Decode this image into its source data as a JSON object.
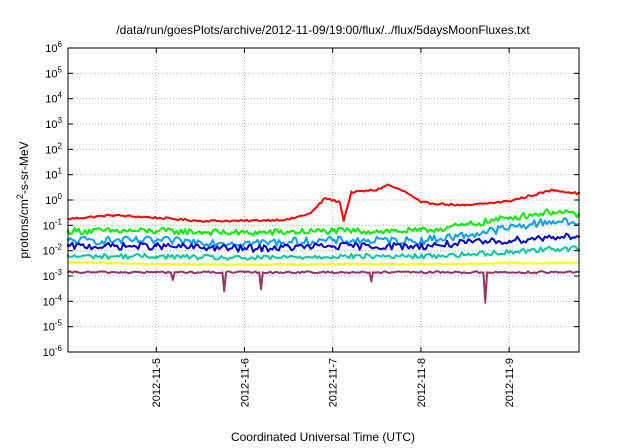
{
  "chart_data": {
    "type": "line",
    "title": "/data/run/goesPlots/archive/2012-11-09/19:00/flux/../flux/5daysMoonFluxes.txt",
    "xlabel": "Coordinated Universal Time (UTC)",
    "ylabel": {
      "prefix": "protons/cm",
      "sup": "2",
      "suffix": "-s-sr-MeV"
    },
    "y_scale": "log",
    "ylim": [
      1e-06,
      1000000.0
    ],
    "xlim": [
      "2012-11-04T00:00Z",
      "2012-11-09T19:00Z"
    ],
    "grid": true,
    "y_ticks": [
      {
        "base": "10",
        "exp": "-6"
      },
      {
        "base": "10",
        "exp": "-5"
      },
      {
        "base": "10",
        "exp": "-4"
      },
      {
        "base": "10",
        "exp": "-3"
      },
      {
        "base": "10",
        "exp": "-2"
      },
      {
        "base": "10",
        "exp": "-1"
      },
      {
        "base": "10",
        "exp": "0"
      },
      {
        "base": "10",
        "exp": "1"
      },
      {
        "base": "10",
        "exp": "2"
      },
      {
        "base": "10",
        "exp": "3"
      },
      {
        "base": "10",
        "exp": "4"
      },
      {
        "base": "10",
        "exp": "5"
      },
      {
        "base": "10",
        "exp": "6"
      }
    ],
    "x_ticks": [
      "2012-11-5",
      "2012-11-6",
      "2012-11-7",
      "2012-11-8",
      "2012-11-9"
    ],
    "x_tick_dates": [
      "2012-11-05T00:00Z",
      "2012-11-06T00:00Z",
      "2012-11-07T00:00Z",
      "2012-11-08T00:00Z",
      "2012-11-09T00:00Z"
    ],
    "series": [
      {
        "color": "#ff0000",
        "x": [
          "2012-11-04T00:00Z",
          "2012-11-04T12:00Z",
          "2012-11-05T00:00Z",
          "2012-11-05T12:00Z",
          "2012-11-06T00:00Z",
          "2012-11-06T12:00Z",
          "2012-11-06T18:00Z",
          "2012-11-06T22:00Z",
          "2012-11-07T02:00Z",
          "2012-11-07T03:00Z",
          "2012-11-07T05:00Z",
          "2012-11-07T12:00Z",
          "2012-11-07T15:00Z",
          "2012-11-07T20:00Z",
          "2012-11-08T00:00Z",
          "2012-11-08T12:00Z",
          "2012-11-09T00:00Z",
          "2012-11-09T12:00Z",
          "2012-11-09T19:00Z"
        ],
        "y": [
          0.18,
          0.25,
          0.2,
          0.15,
          0.15,
          0.17,
          0.3,
          1.2,
          0.8,
          0.15,
          2,
          2.5,
          4,
          2,
          0.8,
          0.6,
          0.9,
          2.5,
          1.8
        ]
      },
      {
        "color": "#00ee00",
        "x": [
          "2012-11-04T00:00Z",
          "2012-11-05T00:00Z",
          "2012-11-06T00:00Z",
          "2012-11-07T00:00Z",
          "2012-11-08T00:00Z",
          "2012-11-08T12:00Z",
          "2012-11-09T00:00Z",
          "2012-11-09T12:00Z",
          "2012-11-09T19:00Z"
        ],
        "y": [
          0.06,
          0.06,
          0.05,
          0.06,
          0.06,
          0.1,
          0.2,
          0.35,
          0.25
        ]
      },
      {
        "color": "#00a0ff",
        "x": [
          "2012-11-04T00:00Z",
          "2012-11-05T00:00Z",
          "2012-11-06T00:00Z",
          "2012-11-07T00:00Z",
          "2012-11-08T00:00Z",
          "2012-11-08T12:00Z",
          "2012-11-09T00:00Z",
          "2012-11-09T12:00Z",
          "2012-11-09T19:00Z"
        ],
        "y": [
          0.025,
          0.025,
          0.02,
          0.025,
          0.025,
          0.04,
          0.08,
          0.15,
          0.12
        ]
      },
      {
        "color": "#0000cc",
        "x": [
          "2012-11-04T00:00Z",
          "2012-11-05T00:00Z",
          "2012-11-06T00:00Z",
          "2012-11-07T00:00Z",
          "2012-11-08T00:00Z",
          "2012-11-08T12:00Z",
          "2012-11-09T00:00Z",
          "2012-11-09T12:00Z",
          "2012-11-09T19:00Z"
        ],
        "y": [
          0.015,
          0.015,
          0.012,
          0.015,
          0.015,
          0.02,
          0.025,
          0.035,
          0.04
        ]
      },
      {
        "color": "#00c8a0",
        "x": [
          "2012-11-04T00:00Z",
          "2012-11-05T00:00Z",
          "2012-11-06T00:00Z",
          "2012-11-07T00:00Z",
          "2012-11-08T00:00Z",
          "2012-11-08T12:00Z",
          "2012-11-09T00:00Z",
          "2012-11-09T12:00Z",
          "2012-11-09T19:00Z"
        ],
        "y": [
          0.006,
          0.006,
          0.005,
          0.006,
          0.006,
          0.007,
          0.009,
          0.012,
          0.012
        ]
      },
      {
        "color": "#ffff00",
        "x": [
          "2012-11-04T00:00Z",
          "2012-11-05T00:00Z",
          "2012-11-06T00:00Z",
          "2012-11-07T00:00Z",
          "2012-11-08T00:00Z",
          "2012-11-09T00:00Z",
          "2012-11-09T19:00Z"
        ],
        "y": [
          0.0035,
          0.003,
          0.0028,
          0.003,
          0.003,
          0.0032,
          0.0032
        ]
      },
      {
        "color": "#993366",
        "x": [
          "2012-11-04T00:00Z",
          "2012-11-05T00:00Z",
          "2012-11-05T04:00Z",
          "2012-11-05T04:30Z",
          "2012-11-05T05:00Z",
          "2012-11-05T18:00Z",
          "2012-11-05T18:30Z",
          "2012-11-05T19:00Z",
          "2012-11-06T04:00Z",
          "2012-11-06T04:30Z",
          "2012-11-06T05:00Z",
          "2012-11-07T00:00Z",
          "2012-11-07T10:00Z",
          "2012-11-07T10:30Z",
          "2012-11-07T11:00Z",
          "2012-11-08T17:00Z",
          "2012-11-08T17:30Z",
          "2012-11-08T18:00Z",
          "2012-11-09T19:00Z"
        ],
        "y": [
          0.0014,
          0.0014,
          0.0014,
          0.0007,
          0.0014,
          0.0014,
          0.00025,
          0.0014,
          0.0014,
          0.0003,
          0.0014,
          0.0014,
          0.0014,
          0.0006,
          0.0014,
          0.0014,
          9e-05,
          0.0014,
          0.0014
        ]
      }
    ]
  }
}
